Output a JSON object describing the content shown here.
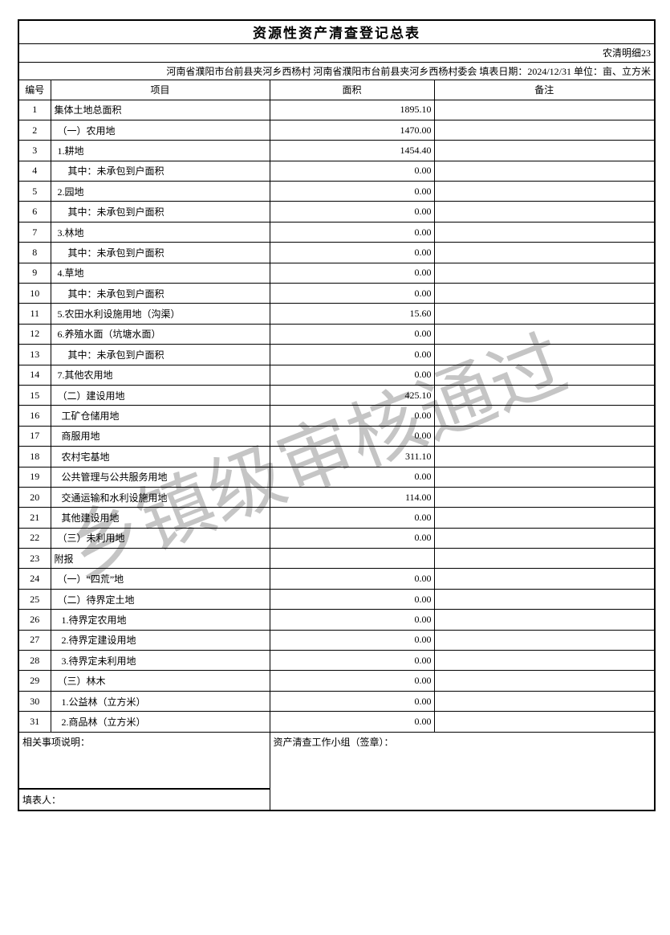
{
  "page": {
    "title": "资源性资产清查登记总表",
    "form_code": "农清明细23",
    "info_line": "河南省濮阳市台前县夹河乡西杨村 河南省濮阳市台前县夹河乡西杨村委会 填表日期：2024/12/31 单位：亩、立方米"
  },
  "watermark": {
    "text": "乡镇级审核通过",
    "color": "#c5c5c5"
  },
  "table": {
    "headers": {
      "no": "编号",
      "item": "项目",
      "area": "面积",
      "note": "备注"
    },
    "rows": [
      {
        "no": "1",
        "item": "集体土地总面积",
        "area": "1895.10",
        "note": "",
        "indent": 0
      },
      {
        "no": "2",
        "item": "（一）农用地",
        "area": "1470.00",
        "note": "",
        "indent": 1
      },
      {
        "no": "3",
        "item": "1.耕地",
        "area": "1454.40",
        "note": "",
        "indent": 1
      },
      {
        "no": "4",
        "item": "其中：未承包到户面积",
        "area": "0.00",
        "note": "",
        "indent": 3
      },
      {
        "no": "5",
        "item": "2.园地",
        "area": "0.00",
        "note": "",
        "indent": 1
      },
      {
        "no": "6",
        "item": "其中：未承包到户面积",
        "area": "0.00",
        "note": "",
        "indent": 3
      },
      {
        "no": "7",
        "item": "3.林地",
        "area": "0.00",
        "note": "",
        "indent": 1
      },
      {
        "no": "8",
        "item": "其中：未承包到户面积",
        "area": "0.00",
        "note": "",
        "indent": 3
      },
      {
        "no": "9",
        "item": "4.草地",
        "area": "0.00",
        "note": "",
        "indent": 1
      },
      {
        "no": "10",
        "item": "其中：未承包到户面积",
        "area": "0.00",
        "note": "",
        "indent": 3
      },
      {
        "no": "11",
        "item": "5.农田水利设施用地（沟渠）",
        "area": "15.60",
        "note": "",
        "indent": 1
      },
      {
        "no": "12",
        "item": "6.养殖水面（坑塘水面）",
        "area": "0.00",
        "note": "",
        "indent": 1
      },
      {
        "no": "13",
        "item": "其中：未承包到户面积",
        "area": "0.00",
        "note": "",
        "indent": 3
      },
      {
        "no": "14",
        "item": "7.其他农用地",
        "area": "0.00",
        "note": "",
        "indent": 1
      },
      {
        "no": "15",
        "item": "（二）建设用地",
        "area": "425.10",
        "note": "",
        "indent": 1
      },
      {
        "no": "16",
        "item": "工矿仓储用地",
        "area": "0.00",
        "note": "",
        "indent": 2
      },
      {
        "no": "17",
        "item": "商服用地",
        "area": "0.00",
        "note": "",
        "indent": 2
      },
      {
        "no": "18",
        "item": "农村宅基地",
        "area": "311.10",
        "note": "",
        "indent": 2
      },
      {
        "no": "19",
        "item": "公共管理与公共服务用地",
        "area": "0.00",
        "note": "",
        "indent": 2
      },
      {
        "no": "20",
        "item": "交通运输和水利设施用地",
        "area": "114.00",
        "note": "",
        "indent": 2
      },
      {
        "no": "21",
        "item": "其他建设用地",
        "area": "0.00",
        "note": "",
        "indent": 2
      },
      {
        "no": "22",
        "item": "（三）未利用地",
        "area": "0.00",
        "note": "",
        "indent": 1
      },
      {
        "no": "23",
        "item": "附报",
        "area": "",
        "note": "",
        "indent": 0
      },
      {
        "no": "24",
        "item": "（一）“四荒”地",
        "area": "0.00",
        "note": "",
        "indent": 1
      },
      {
        "no": "25",
        "item": "（二）待界定土地",
        "area": "0.00",
        "note": "",
        "indent": 1
      },
      {
        "no": "26",
        "item": "1.待界定农用地",
        "area": "0.00",
        "note": "",
        "indent": 2
      },
      {
        "no": "27",
        "item": "2.待界定建设用地",
        "area": "0.00",
        "note": "",
        "indent": 2
      },
      {
        "no": "28",
        "item": "3.待界定未利用地",
        "area": "0.00",
        "note": "",
        "indent": 2
      },
      {
        "no": "29",
        "item": "（三）林木",
        "area": "0.00",
        "note": "",
        "indent": 1
      },
      {
        "no": "30",
        "item": "1.公益林（立方米）",
        "area": "0.00",
        "note": "",
        "indent": 2
      },
      {
        "no": "31",
        "item": "2.商品林（立方米）",
        "area": "0.00",
        "note": "",
        "indent": 2
      }
    ]
  },
  "footer": {
    "notes_label": "相关事项说明：",
    "preparer_label": "填表人：",
    "team_label": "资产清查工作小组（签章）："
  }
}
